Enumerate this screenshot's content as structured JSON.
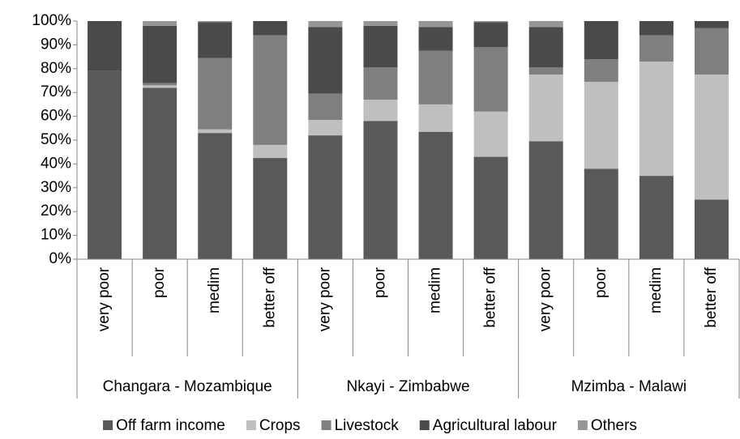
{
  "chart_data": {
    "type": "stacked_bar_100",
    "categories": [
      "very poor",
      "poor",
      "medim",
      "better off",
      "very poor",
      "poor",
      "medim",
      "better off",
      "very poor",
      "poor",
      "medim",
      "better off"
    ],
    "groups": [
      "Changara - Mozambique",
      "Nkayi - Zimbabwe",
      "Mzimba - Malawi"
    ],
    "series": [
      {
        "name": "Off farm income",
        "color": "#595959",
        "values": [
          79,
          72,
          53,
          42.5,
          52,
          58,
          53.5,
          43,
          49.5,
          38,
          35,
          25
        ]
      },
      {
        "name": "Crops",
        "color": "#bfbfbf",
        "values": [
          0,
          1,
          1.5,
          5.5,
          6.5,
          9,
          11.5,
          19,
          28,
          36.5,
          48,
          52.5
        ]
      },
      {
        "name": "Livestock",
        "color": "#7f7f7f",
        "values": [
          0,
          1,
          30,
          46,
          11,
          13.5,
          22.5,
          27,
          3,
          9.5,
          11,
          19.5
        ]
      },
      {
        "name": "Agricultural labour",
        "color": "#4a4a4a",
        "values": [
          21,
          24,
          15,
          6,
          28,
          17.5,
          10,
          10.5,
          17,
          16,
          6,
          3
        ]
      },
      {
        "name": "Others",
        "color": "#969696",
        "values": [
          0,
          2,
          0.5,
          0,
          2.5,
          2,
          2.5,
          0.5,
          2.5,
          0,
          0,
          0
        ]
      }
    ],
    "ylim": [
      0,
      100
    ],
    "yticks": [
      {
        "value": 0,
        "label": "0%"
      },
      {
        "value": 10,
        "label": "10%"
      },
      {
        "value": 20,
        "label": "20%"
      },
      {
        "value": 30,
        "label": "30%"
      },
      {
        "value": 40,
        "label": "40%"
      },
      {
        "value": 50,
        "label": "50%"
      },
      {
        "value": 60,
        "label": "60%"
      },
      {
        "value": 70,
        "label": "70%"
      },
      {
        "value": 80,
        "label": "80%"
      },
      {
        "value": 90,
        "label": "90%"
      },
      {
        "value": 100,
        "label": "100%"
      }
    ],
    "legend": "bottom"
  }
}
